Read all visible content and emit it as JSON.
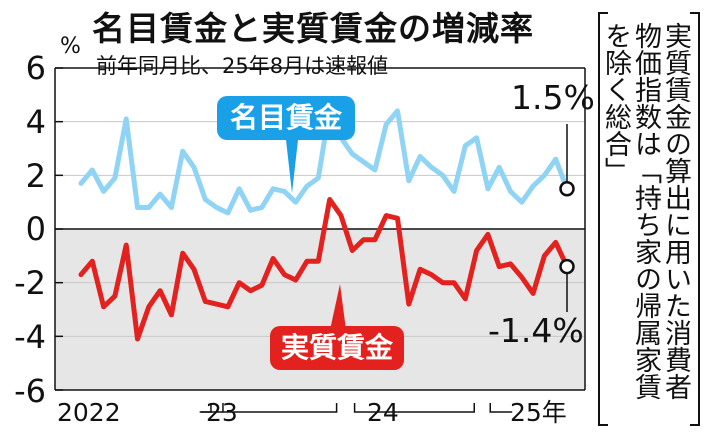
{
  "title": "名目賃金と実質賃金の増減率",
  "subtitle": "前年同月比、25年8月は速報値",
  "unit": "%",
  "note": "実質賃金の算出に用いた消費者物価指数は「持ち家の帰属家賃を除く総合」",
  "labels": {
    "nominal_tag": "名目賃金",
    "real_tag": "実質賃金",
    "nominal_end": "1.5%",
    "real_end": "-1.4%"
  },
  "y_ticks": [
    "6",
    "4",
    "2",
    "0",
    "-2",
    "-4",
    "-6"
  ],
  "x_ticks": [
    "2022",
    "23",
    "24",
    "25年"
  ],
  "colors": {
    "nominal": "#8fd3f5",
    "nominal_tag": "#1aa0e6",
    "real": "#e3211e",
    "negative_area": "#e6e6e6"
  },
  "chart_data": {
    "type": "line",
    "title": "名目賃金と実質賃金の増減率",
    "subtitle": "前年同月比、25年8月は速報値",
    "ylabel": "%",
    "ylim": [
      -6,
      6
    ],
    "y_tick_values": [
      6,
      4,
      2,
      0,
      -2,
      -4,
      -6
    ],
    "x": [
      "2022-01",
      "2022-02",
      "2022-03",
      "2022-04",
      "2022-05",
      "2022-06",
      "2022-07",
      "2022-08",
      "2022-09",
      "2022-10",
      "2022-11",
      "2022-12",
      "2023-01",
      "2023-02",
      "2023-03",
      "2023-04",
      "2023-05",
      "2023-06",
      "2023-07",
      "2023-08",
      "2023-09",
      "2023-10",
      "2023-11",
      "2023-12",
      "2024-01",
      "2024-02",
      "2024-03",
      "2024-04",
      "2024-05",
      "2024-06",
      "2024-07",
      "2024-08",
      "2024-09",
      "2024-10",
      "2024-11",
      "2024-12",
      "2025-01",
      "2025-02",
      "2025-03",
      "2025-04",
      "2025-05",
      "2025-06",
      "2025-07",
      "2025-08"
    ],
    "series": [
      {
        "name": "名目賃金",
        "values": [
          1.7,
          2.2,
          1.4,
          1.9,
          4.1,
          0.8,
          0.8,
          1.3,
          0.8,
          2.9,
          2.3,
          1.1,
          0.8,
          0.6,
          1.5,
          0.7,
          0.8,
          1.5,
          1.4,
          1.0,
          1.6,
          1.9,
          4.5,
          3.4,
          2.8,
          2.5,
          2.2,
          3.9,
          4.4,
          1.8,
          2.7,
          2.3,
          2.0,
          1.4,
          3.1,
          3.4,
          1.5,
          2.3,
          1.4,
          1.0,
          1.6,
          2.0,
          2.6,
          1.5
        ]
      },
      {
        "name": "実質賃金",
        "values": [
          -1.7,
          -1.2,
          -2.9,
          -2.5,
          -0.6,
          -4.1,
          -2.9,
          -2.3,
          -3.2,
          -0.9,
          -1.5,
          -2.7,
          -2.8,
          -2.9,
          -2.0,
          -2.3,
          -2.1,
          -1.1,
          -1.7,
          -1.9,
          -1.2,
          -1.2,
          1.1,
          0.5,
          -0.8,
          -0.4,
          -0.4,
          0.5,
          0.4,
          -2.8,
          -1.5,
          -1.7,
          -2.0,
          -2.0,
          -2.6,
          -0.8,
          -0.2,
          -1.4,
          -1.3,
          -1.8,
          -2.4,
          -1.0,
          -0.5,
          -1.4
        ]
      }
    ],
    "annotations": [
      "1.5%",
      "-1.4%"
    ],
    "grid": true,
    "legend": "none"
  }
}
